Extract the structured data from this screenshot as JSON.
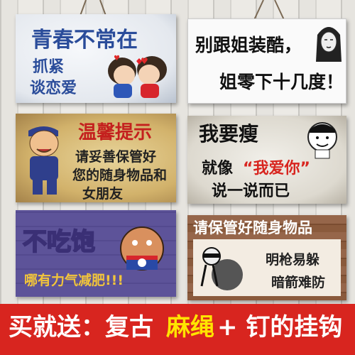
{
  "signs": {
    "s1": {
      "line1": "青春不常在",
      "line2": "抓紧",
      "line3": "谈恋爱"
    },
    "s2": {
      "line1": "别跟姐装酷，",
      "line2": "姐零下十几度！"
    },
    "s3": {
      "line1": "温馨提示",
      "line2": "请妥善保管好",
      "line3": "您的随身物品和",
      "line4": "女朋友"
    },
    "s4": {
      "line1": "我要瘦",
      "line2": "就像",
      "line3": "“我爱你”",
      "line4": "说一说而已"
    },
    "s5": {
      "line1": "不吃饱",
      "line2": "哪有力气减肥!!!"
    },
    "s6": {
      "line1": "请保管好随身物品",
      "line2": "明枪易躲",
      "line3": "暗箭难防"
    }
  },
  "banner": {
    "part1": "买就送：复古",
    "part2": "麻绳",
    "part3": "+ 钉的挂钩"
  },
  "colors": {
    "banner_bg": "#d8251f",
    "banner_text": "#ffffff",
    "banner_highlight": "#ffe400",
    "s1_text": "#2a4c9a",
    "s3_title": "#c4201e",
    "s4_highlight": "#d8251f"
  }
}
